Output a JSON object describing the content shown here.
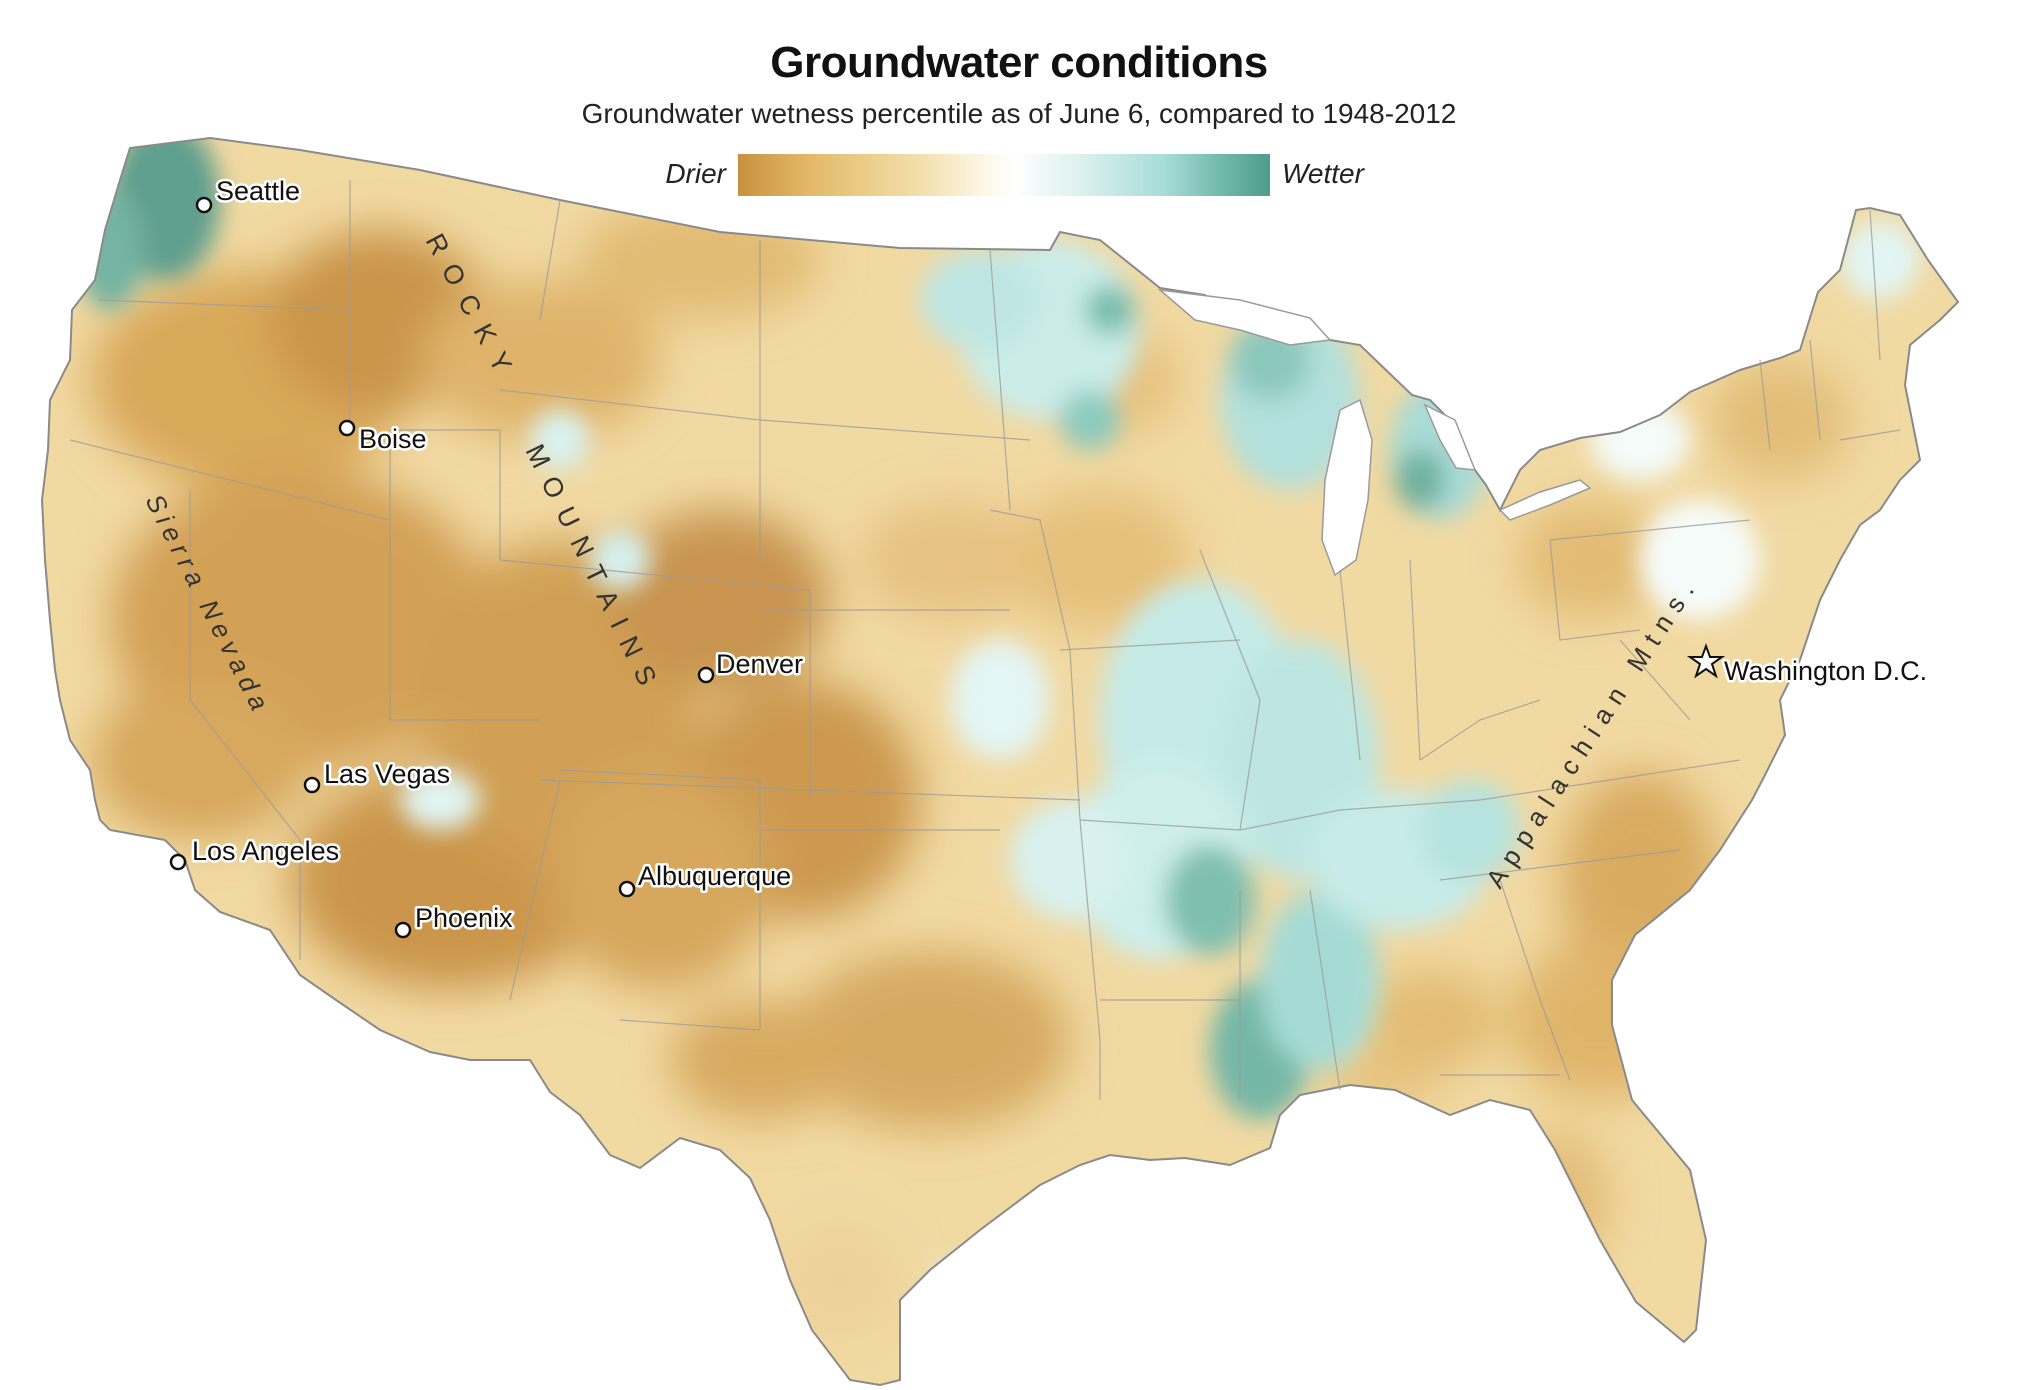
{
  "title": "Groundwater conditions",
  "subtitle": "Groundwater wetness percentile as of June 6, compared to 1948-2012",
  "legend": {
    "low_label": "Drier",
    "high_label": "Wetter",
    "colors": [
      "#c9913f",
      "#e3bb6a",
      "#f1dba4",
      "#fbf5df",
      "#ffffff",
      "#d9f0ee",
      "#a8dcd9",
      "#74bcae",
      "#4f9c8b"
    ]
  },
  "colors": {
    "dry_strong": "#c58d45",
    "dry_medium": "#e0b96c",
    "dry_light": "#f1d9a2",
    "neutral": "#fbf6e6",
    "wet_light": "#d8f0ef",
    "wet_medium": "#a6dbd8",
    "wet_strong": "#5a9f8e",
    "border": "#a9a9a9"
  },
  "cities": [
    {
      "name": "Seattle",
      "marker": "circle"
    },
    {
      "name": "Boise",
      "marker": "circle"
    },
    {
      "name": "Denver",
      "marker": "circle"
    },
    {
      "name": "Las Vegas",
      "marker": "circle"
    },
    {
      "name": "Los Angeles",
      "marker": "circle"
    },
    {
      "name": "Albuquerque",
      "marker": "circle"
    },
    {
      "name": "Phoenix",
      "marker": "circle"
    },
    {
      "name": "Washington D.C.",
      "marker": "star"
    }
  ],
  "regions": {
    "rockies_1": "ROCKY",
    "rockies_2": "MOUNTAINS",
    "sierra": "Sierra Nevada",
    "appalachian": "Appalachian Mtns."
  }
}
